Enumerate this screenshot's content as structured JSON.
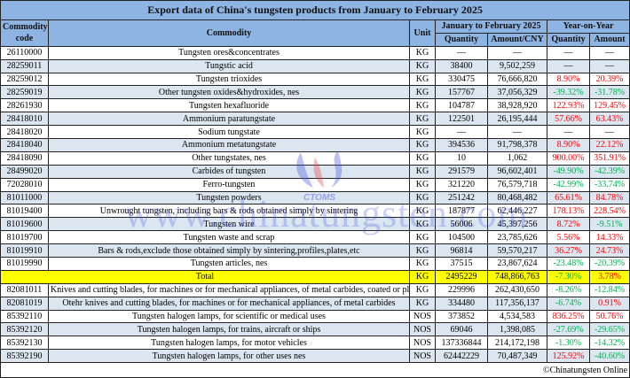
{
  "title": "Export data of China's tungsten products from January to February 2025",
  "headers": {
    "code": "Commodity code",
    "commodity": "Commodity",
    "unit": "Unit",
    "period": "January to February 2025",
    "yoy": "Year-on-Year",
    "quantity": "Quantity",
    "amount": "Amount/CNY",
    "yoy_quantity": "Quantity",
    "yoy_amount": "Amount"
  },
  "rows": [
    [
      "26110000",
      "Tungsten ores&concentrates",
      "KG",
      "—",
      "—",
      "—",
      "—"
    ],
    [
      "28259011",
      "Tungstic acid",
      "KG",
      "38400",
      "9,502,259",
      "—",
      "—"
    ],
    [
      "28259012",
      "Tungsten trioxides",
      "KG",
      "330475",
      "76,666,820",
      "8.90%",
      "20.39%"
    ],
    [
      "28259019",
      "Other tungsten oxides&hydroxides, nes",
      "KG",
      "157767",
      "37,056,329",
      "-39.32%",
      "-31.78%"
    ],
    [
      "28261930",
      "Tungsten hexafluoride",
      "KG",
      "104787",
      "38,928,920",
      "122.93%",
      "129.45%"
    ],
    [
      "28418010",
      "Ammonium paratungstate",
      "KG",
      "122501",
      "26,195,444",
      "57.66%",
      "63.43%"
    ],
    [
      "28418020",
      "Sodium tungstate",
      "KG",
      "—",
      "—",
      "—",
      "—"
    ],
    [
      "28418040",
      "Ammonium metatungstate",
      "KG",
      "394536",
      "91,798,378",
      "8.90%",
      "22.12%"
    ],
    [
      "28418090",
      "Other tungstates, nes",
      "KG",
      "10",
      "1,062",
      "900.00%",
      "351.91%"
    ],
    [
      "28499020",
      "Carbides of tungsten",
      "KG",
      "291579",
      "96,602,401",
      "-49.90%",
      "-42.39%"
    ],
    [
      "72028010",
      "Ferro-tungsten",
      "KG",
      "321220",
      "76,579,718",
      "-42.99%",
      "-33.74%"
    ],
    [
      "81011000",
      "Tungsten powders",
      "KG",
      "251242",
      "80,468,482",
      "65.61%",
      "84.78%"
    ],
    [
      "81019400",
      "Unwrought tungsten, including bars & rods obtained simply by sintering",
      "KG",
      "187877",
      "62,446,227",
      "178.13%",
      "228.54%"
    ],
    [
      "81019600",
      "Tungsten wire",
      "KG",
      "56006",
      "45,397,256",
      "8.72%",
      "-9.51%"
    ],
    [
      "81019700",
      "Tungsten waste and scrap",
      "KG",
      "104500",
      "23,785,626",
      "5.56%",
      "14.33%"
    ],
    [
      "81019910",
      "Bars & rods,exclude those obtained simply by sintering,profiles,plates,etc",
      "KG",
      "96814",
      "59,570,217",
      "36.27%",
      "24.73%"
    ],
    [
      "81019990",
      "Tungsten articles, nes",
      "KG",
      "37515",
      "23,867,624",
      "-23.48%",
      "-20.39%"
    ]
  ],
  "total": [
    "Total",
    "KG",
    "2495229",
    "748,866,763",
    "-7.30%",
    "3.78%"
  ],
  "rows2": [
    [
      "82081011",
      "Knives and cutting blades, for machines or for mechanical appliances, of metal carbides, coated or plated",
      "KG",
      "229996",
      "262,430,650",
      "-8.26%",
      "-12.84%"
    ],
    [
      "82081019",
      "Otehr knives and cutting blades, for machines or for mechanical appliances, of metal carbides",
      "KG",
      "334480",
      "117,356,137",
      "-6.74%",
      "0.91%"
    ],
    [
      "85392110",
      "Tungsten halogen lamps, for scientific or medical uses",
      "NOS",
      "373852",
      "4,534,583",
      "836.25%",
      "50.76%"
    ],
    [
      "85392120",
      "Tungsten halogen lamps, for trains, aircraft or ships",
      "NOS",
      "69046",
      "1,398,085",
      "-27.69%",
      "-29.65%"
    ],
    [
      "85392130",
      "Tungsten halogen lamps, for motor vehicles",
      "NOS",
      "137336844",
      "214,172,198",
      "-1.30%",
      "-14.32%"
    ],
    [
      "85392190",
      "Tungsten halogen lamps, for other uses nes",
      "NOS",
      "62442229",
      "70,487,349",
      "125.92%",
      "-40.60%"
    ]
  ],
  "footer": "©Chinatungsten Online",
  "watermark": {
    "text": "www.chinatungsten.com",
    "logo_text": "CTOMS"
  },
  "colors": {
    "header": "#8db4e2",
    "alt_row": "#dce6f1",
    "total": "#ffff00",
    "increase": "#ff0000",
    "decrease": "#00b050"
  }
}
